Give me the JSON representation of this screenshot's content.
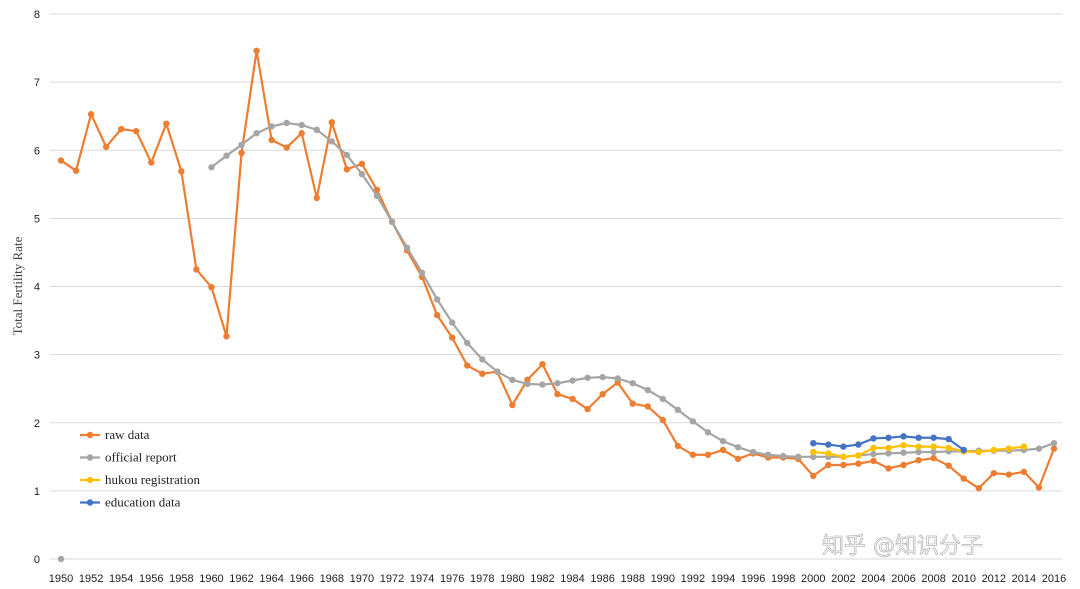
{
  "watermark": "知乎 @知识分子",
  "chart_data": {
    "type": "line",
    "title": "",
    "xlabel": "",
    "ylabel": "Total Fertility Rate",
    "ylim": [
      0,
      8
    ],
    "xlim": [
      1950,
      2016
    ],
    "yticks": [
      "0",
      "1",
      "2",
      "3",
      "4",
      "5",
      "6",
      "7",
      "8"
    ],
    "xticks": [
      "1950",
      "1952",
      "1954",
      "1956",
      "1958",
      "1960",
      "1962",
      "1964",
      "1966",
      "1968",
      "1970",
      "1972",
      "1974",
      "1976",
      "1978",
      "1980",
      "1982",
      "1984",
      "1986",
      "1988",
      "1990",
      "1992",
      "1994",
      "1996",
      "1998",
      "2000",
      "2002",
      "2004",
      "2006",
      "2008",
      "2010",
      "2012",
      "2014",
      "2016"
    ],
    "grid": true,
    "legend_position": "bottom-left",
    "series": [
      {
        "name": "raw data",
        "color": "#ED7D31",
        "x": [
          1950,
          1951,
          1952,
          1953,
          1954,
          1955,
          1956,
          1957,
          1958,
          1959,
          1960,
          1961,
          1962,
          1963,
          1964,
          1965,
          1966,
          1967,
          1968,
          1969,
          1970,
          1971,
          1972,
          1973,
          1974,
          1975,
          1976,
          1977,
          1978,
          1979,
          1980,
          1981,
          1982,
          1983,
          1984,
          1985,
          1986,
          1987,
          1988,
          1989,
          1990,
          1991,
          1992,
          1993,
          1994,
          1995,
          1996,
          1997,
          1998,
          1999,
          2000,
          2001,
          2002,
          2003,
          2004,
          2005,
          2006,
          2007,
          2008,
          2009,
          2010,
          2011,
          2012,
          2013,
          2014,
          2015,
          2016
        ],
        "values": [
          5.85,
          5.7,
          6.53,
          6.05,
          6.31,
          6.28,
          5.82,
          6.39,
          5.69,
          4.25,
          3.99,
          3.27,
          5.96,
          7.46,
          6.15,
          6.04,
          6.25,
          5.3,
          6.41,
          5.72,
          5.8,
          5.42,
          4.95,
          4.53,
          4.14,
          3.58,
          3.25,
          2.84,
          2.72,
          2.75,
          2.26,
          2.63,
          2.86,
          2.42,
          2.35,
          2.2,
          2.42,
          2.59,
          2.28,
          2.24,
          2.04,
          1.66,
          1.53,
          1.53,
          1.6,
          1.47,
          1.55,
          1.49,
          1.49,
          1.47,
          1.22,
          1.38,
          1.38,
          1.4,
          1.44,
          1.33,
          1.38,
          1.45,
          1.48,
          1.37,
          1.18,
          1.04,
          1.26,
          1.24,
          1.28,
          1.05,
          1.62
        ]
      },
      {
        "name": "official report",
        "color": "#A5A5A5",
        "x": [
          1950,
          1960,
          1961,
          1962,
          1963,
          1964,
          1965,
          1966,
          1967,
          1968,
          1969,
          1970,
          1971,
          1972,
          1973,
          1974,
          1975,
          1976,
          1977,
          1978,
          1979,
          1980,
          1981,
          1982,
          1983,
          1984,
          1985,
          1986,
          1987,
          1988,
          1989,
          1990,
          1991,
          1992,
          1993,
          1994,
          1995,
          1996,
          1997,
          1998,
          1999,
          2000,
          2001,
          2002,
          2003,
          2004,
          2005,
          2006,
          2007,
          2008,
          2009,
          2010,
          2011,
          2012,
          2013,
          2014,
          2015,
          2016
        ],
        "values": [
          0.0,
          5.75,
          5.92,
          6.08,
          6.25,
          6.35,
          6.4,
          6.37,
          6.3,
          6.13,
          5.93,
          5.65,
          5.33,
          4.95,
          4.57,
          4.2,
          3.81,
          3.47,
          3.17,
          2.93,
          2.75,
          2.63,
          2.57,
          2.56,
          2.58,
          2.62,
          2.66,
          2.67,
          2.65,
          2.58,
          2.48,
          2.35,
          2.19,
          2.02,
          1.86,
          1.73,
          1.64,
          1.57,
          1.53,
          1.51,
          1.5,
          1.5,
          1.5,
          1.5,
          1.52,
          1.54,
          1.55,
          1.56,
          1.57,
          1.57,
          1.58,
          1.58,
          1.59,
          1.59,
          1.59,
          1.6,
          1.62,
          1.7
        ]
      },
      {
        "name": "hukou registration",
        "color": "#FFC000",
        "x": [
          2000,
          2001,
          2002,
          2003,
          2004,
          2005,
          2006,
          2007,
          2008,
          2009,
          2010,
          2011,
          2012,
          2013,
          2014
        ],
        "values": [
          1.57,
          1.55,
          1.5,
          1.52,
          1.63,
          1.63,
          1.67,
          1.65,
          1.65,
          1.63,
          1.58,
          1.57,
          1.6,
          1.62,
          1.65
        ]
      },
      {
        "name": "education data",
        "color": "#4472C4",
        "x": [
          2000,
          2001,
          2002,
          2003,
          2004,
          2005,
          2006,
          2007,
          2008,
          2009,
          2010
        ],
        "values": [
          1.7,
          1.68,
          1.65,
          1.68,
          1.77,
          1.78,
          1.8,
          1.78,
          1.78,
          1.76,
          1.6
        ]
      }
    ]
  }
}
